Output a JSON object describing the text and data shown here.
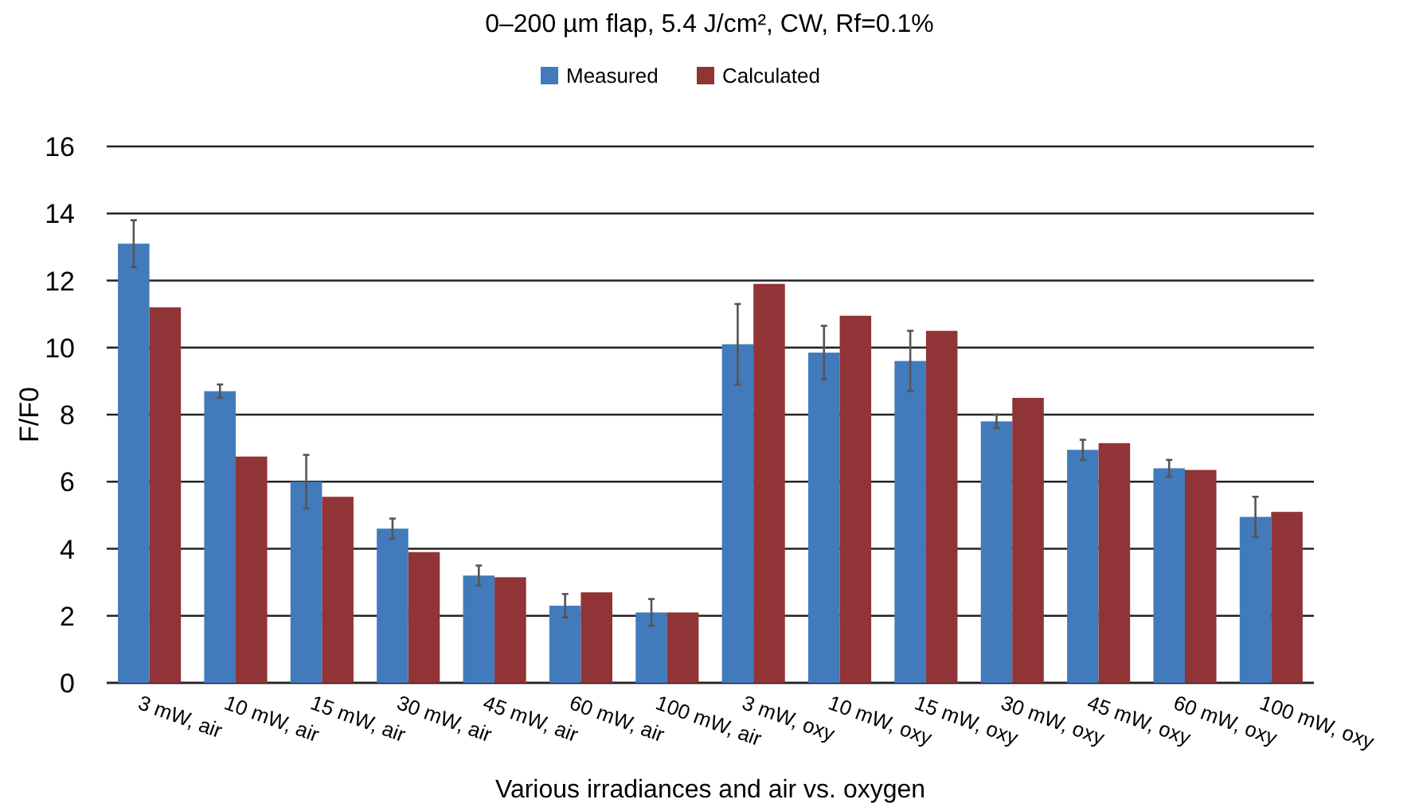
{
  "chart_data": {
    "type": "bar",
    "title": "0–200 µm flap, 5.4 J/cm², CW, Rf=0.1%",
    "xlabel": "Various irradiances and air vs. oxygen",
    "ylabel": "F/F0",
    "categories": [
      "3 mW, air",
      "10 mW, air",
      "15 mW, air",
      "30 mW, air",
      "45 mW, air",
      "60 mW, air",
      "100 mW, air",
      "3 mW, oxy",
      "10 mW, oxy",
      "15 mW, oxy",
      "30 mW, oxy",
      "45 mW, oxy",
      "60 mW, oxy",
      "100 mW, oxy"
    ],
    "series": [
      {
        "name": "Measured",
        "color": "#417bbb",
        "values": [
          13.1,
          8.7,
          6.0,
          4.6,
          3.2,
          2.3,
          2.1,
          10.1,
          9.85,
          9.6,
          7.8,
          6.95,
          6.4,
          4.95
        ],
        "errors": [
          0.7,
          0.2,
          0.8,
          0.3,
          0.3,
          0.35,
          0.4,
          1.2,
          0.8,
          0.9,
          0.2,
          0.3,
          0.25,
          0.6
        ]
      },
      {
        "name": "Calculated",
        "color": "#903437",
        "values": [
          11.2,
          6.75,
          5.55,
          3.9,
          3.15,
          2.7,
          2.1,
          11.9,
          10.95,
          10.5,
          8.5,
          7.15,
          6.35,
          5.1
        ]
      }
    ],
    "ylim": [
      0,
      16
    ],
    "yticks": [
      0,
      2,
      4,
      6,
      8,
      10,
      12,
      14,
      16
    ],
    "grid": "y",
    "legend": "top"
  }
}
